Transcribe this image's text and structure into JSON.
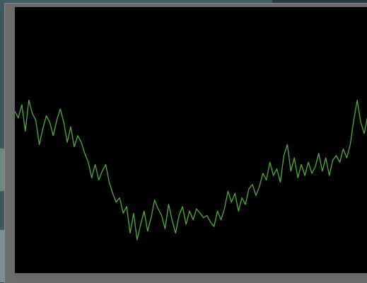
{
  "desktop": {
    "caption": ""
  },
  "window": {
    "status_text": ""
  },
  "plot": {
    "background": "#000000",
    "trace_color": "#4fae3a",
    "y_ticks": [
      "",
      "",
      "",
      "",
      "",
      "",
      "",
      "",
      "",
      "",
      "",
      "",
      ""
    ],
    "x_ticks": [
      "",
      "",
      "",
      "",
      ""
    ]
  },
  "chart_data": {
    "type": "line",
    "title": "",
    "xlabel": "",
    "ylabel": "",
    "xlim": [
      0,
      100
    ],
    "ylim": [
      0,
      12
    ],
    "grid": false,
    "series": [
      {
        "values": [
          7.3,
          7.0,
          7.6,
          6.4,
          7.8,
          7.2,
          6.9,
          5.8,
          6.5,
          7.1,
          6.8,
          6.2,
          6.9,
          7.4,
          6.8,
          5.9,
          6.6,
          5.7,
          6.2,
          5.9,
          5.4,
          5.0,
          4.3,
          4.9,
          4.2,
          4.6,
          4.9,
          4.1,
          3.6,
          3.2,
          3.4,
          2.7,
          3.0,
          1.8,
          2.7,
          1.5,
          2.2,
          2.8,
          1.9,
          2.5,
          3.3,
          2.9,
          2.6,
          2.0,
          3.1,
          2.4,
          1.8,
          2.6,
          3.0,
          2.2,
          2.8,
          2.4,
          2.9,
          2.7,
          2.5,
          2.6,
          2.3,
          2.1,
          2.8,
          2.4,
          2.9,
          3.7,
          3.2,
          3.6,
          2.8,
          3.4,
          3.1,
          3.8,
          4.0,
          3.5,
          3.9,
          4.5,
          4.2,
          5.0,
          4.4,
          4.7,
          4.1,
          5.3,
          5.8,
          4.6,
          5.2,
          4.3,
          4.9,
          4.4,
          5.0,
          4.5,
          4.8,
          5.4,
          4.6,
          5.2,
          4.4,
          5.1,
          5.3,
          5.0,
          5.6,
          5.2,
          5.8,
          6.9,
          7.8,
          6.8,
          6.3,
          7.1
        ]
      }
    ]
  }
}
